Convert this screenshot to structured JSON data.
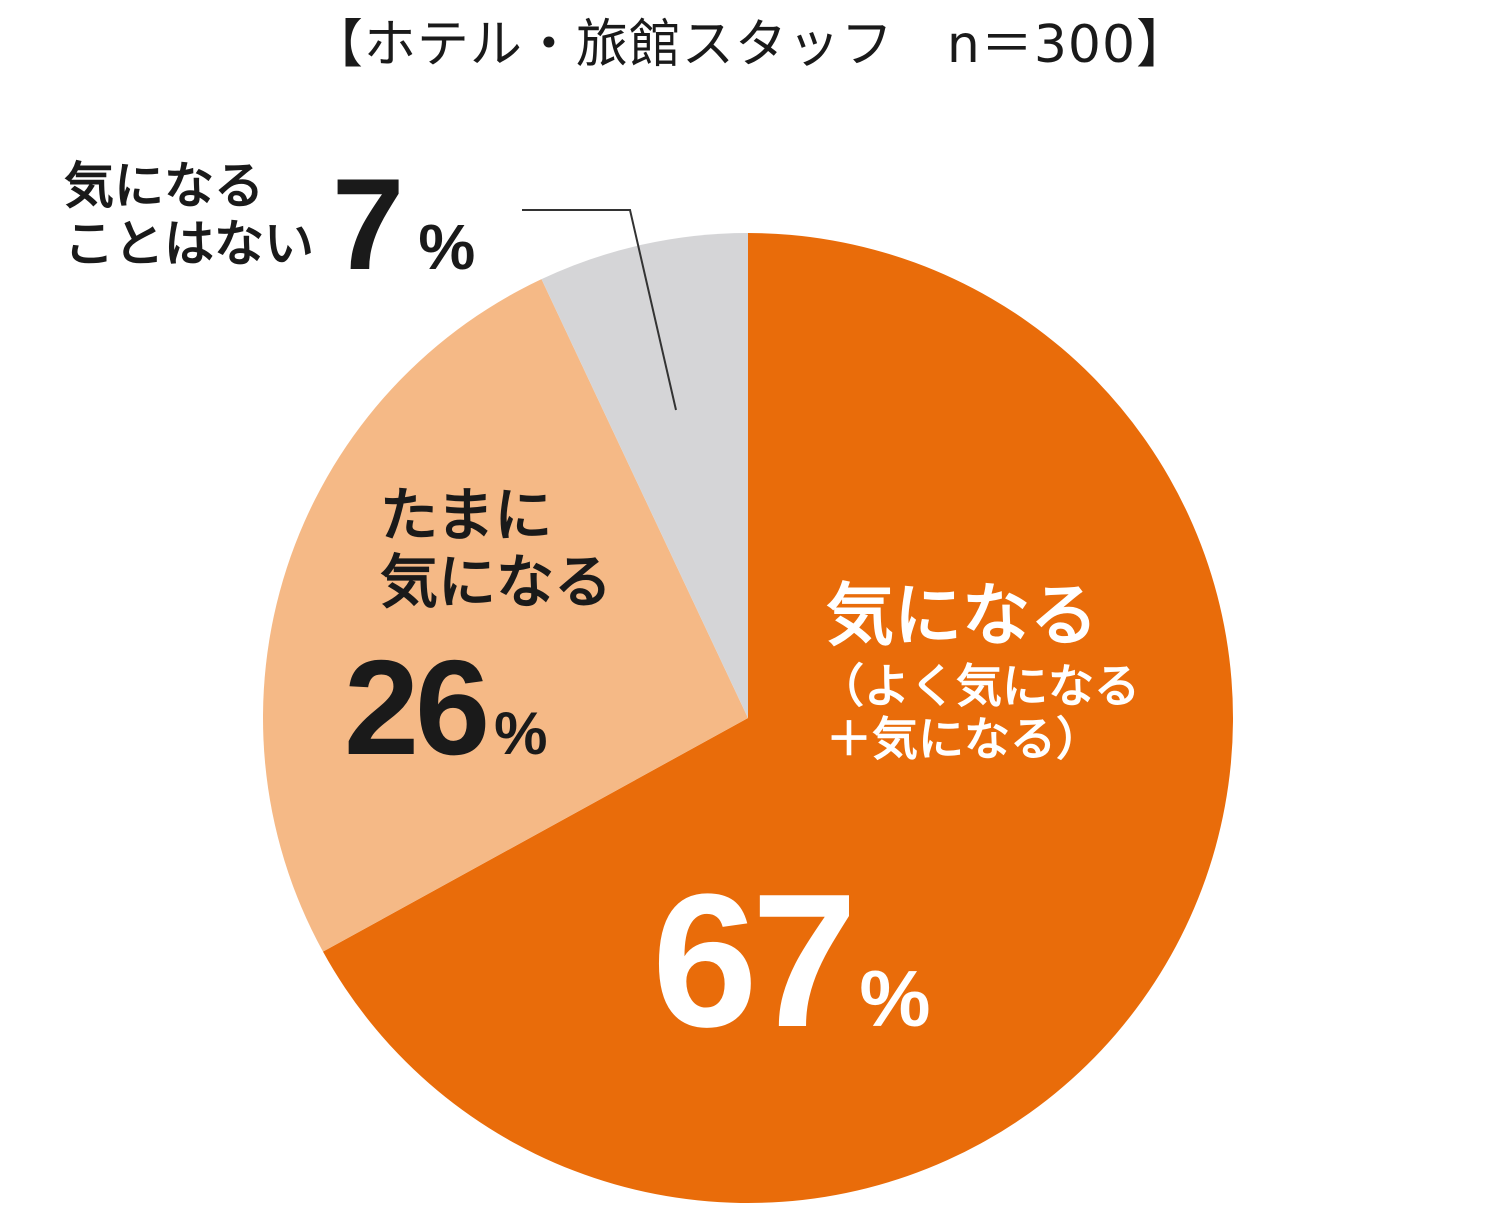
{
  "chart_data": {
    "type": "pie",
    "title": "【ホテル・旅館スタッフ　n＝300】",
    "start": "top",
    "direction": "clockwise",
    "slices": [
      {
        "label_lines": [
          "気になる"
        ],
        "sublabel_lines": [
          "（よく気になる",
          "＋気になる）"
        ],
        "value": 67,
        "value_text": "67",
        "unit": "%",
        "color": "#E96C0A"
      },
      {
        "label_lines": [
          "たまに",
          "気になる"
        ],
        "value": 26,
        "value_text": "26",
        "unit": "%",
        "color": "#F5B986"
      },
      {
        "label_lines": [
          "気になる",
          "ことはない"
        ],
        "value": 7,
        "value_text": "7",
        "unit": "%",
        "color": "#D5D5D7"
      }
    ]
  }
}
